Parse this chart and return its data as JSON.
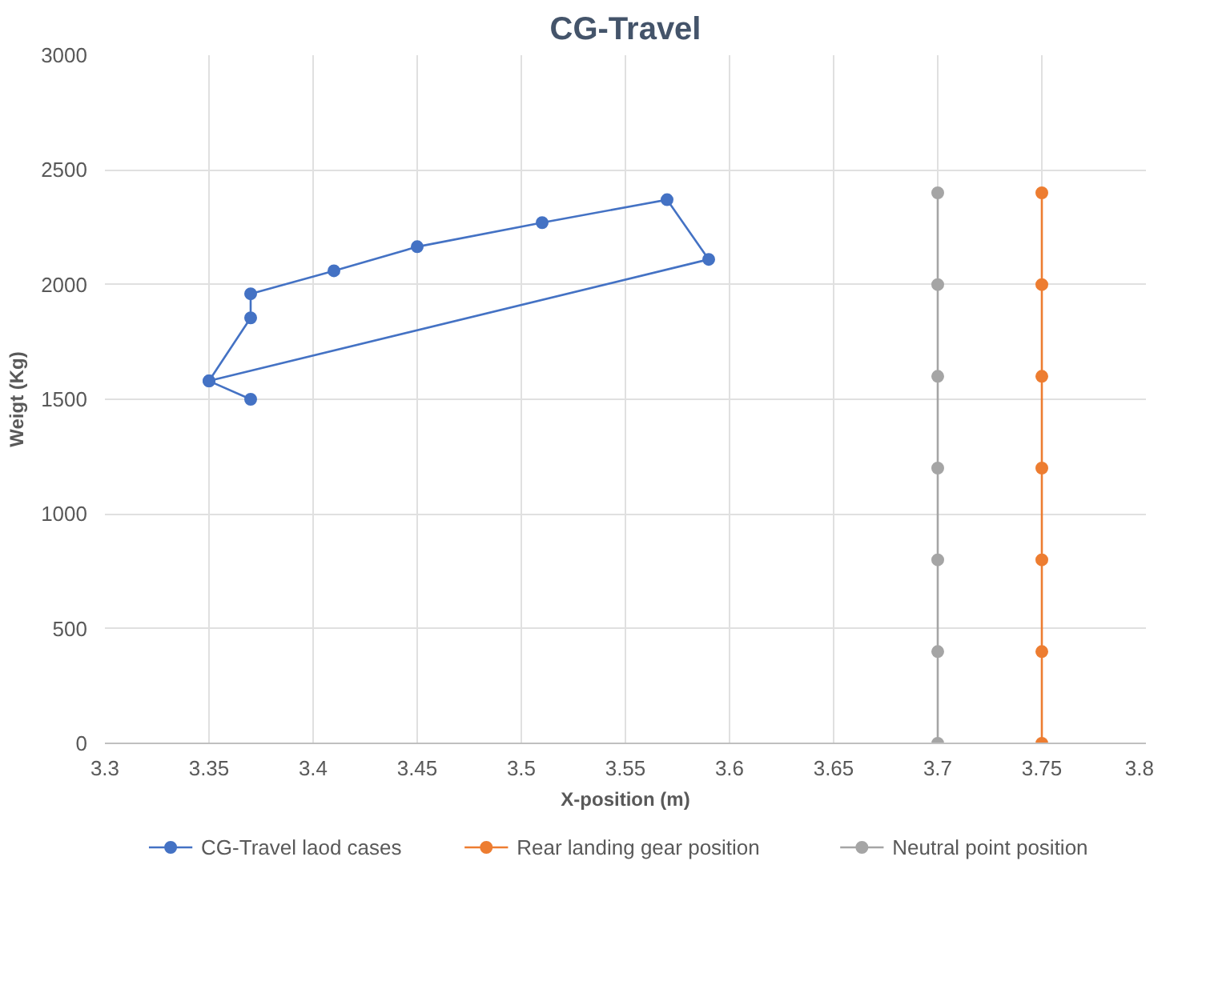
{
  "chart_data": {
    "type": "line",
    "title": "CG-Travel",
    "xlabel": "X-position (m)",
    "ylabel": "Weigt (Kg)",
    "xlim": [
      3.3,
      3.8
    ],
    "xticks": [
      3.3,
      3.35,
      3.4,
      3.45,
      3.5,
      3.55,
      3.6,
      3.65,
      3.7,
      3.75,
      3.8
    ],
    "ylim": [
      0,
      3000
    ],
    "yticks": [
      0,
      500,
      1000,
      1500,
      2000,
      2500,
      3000
    ],
    "grid": true,
    "legend": "bottom",
    "marker": "circle",
    "line_style": "solid",
    "series": [
      {
        "name": "CG-Travel laod cases",
        "color": "#4472c4",
        "x": [
          3.37,
          3.35,
          3.37,
          3.37,
          3.41,
          3.45,
          3.51,
          3.57,
          3.59,
          3.35
        ],
        "values": [
          1500,
          1580,
          1855,
          1960,
          2060,
          2165,
          2270,
          2370,
          2110,
          1580
        ]
      },
      {
        "name": "Rear landing gear position",
        "color": "#ed7d31",
        "x": [
          3.75,
          3.75,
          3.75,
          3.75,
          3.75,
          3.75,
          3.75
        ],
        "values": [
          0,
          400,
          800,
          1200,
          1600,
          2000,
          2400
        ]
      },
      {
        "name": "Neutral point position",
        "color": "#a5a5a5",
        "x": [
          3.7,
          3.7,
          3.7,
          3.7,
          3.7,
          3.7,
          3.7
        ],
        "values": [
          0,
          400,
          800,
          1200,
          1600,
          2000,
          2400
        ]
      }
    ]
  }
}
